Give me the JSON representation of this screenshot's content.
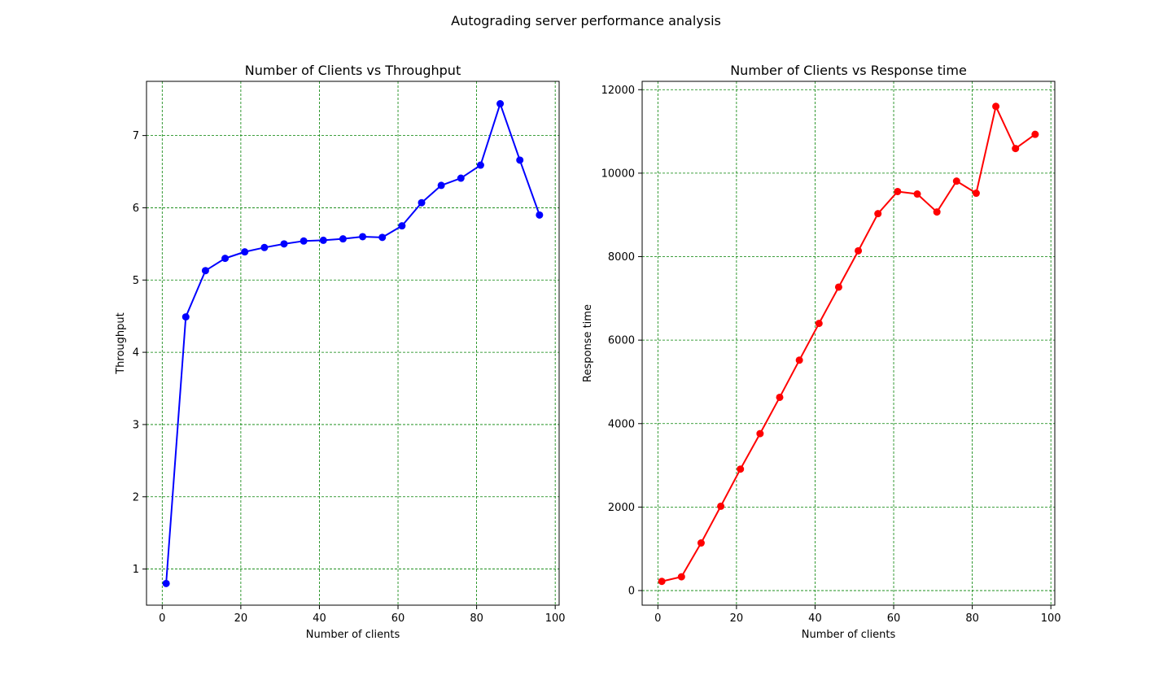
{
  "figure": {
    "suptitle": "Autograding server performance analysis"
  },
  "chart_data": [
    {
      "type": "line",
      "title": "Number of Clients vs Throughput",
      "xlabel": "Number of clients",
      "ylabel": "Throughput",
      "xlim": [
        -4,
        101
      ],
      "ylim": [
        0.5,
        7.75
      ],
      "xticks": [
        0,
        20,
        40,
        60,
        80,
        100
      ],
      "yticks": [
        1,
        2,
        3,
        4,
        5,
        6,
        7
      ],
      "grid": true,
      "grid_color": "#008000",
      "grid_style": "dashed",
      "series": [
        {
          "color": "#0000ff",
          "marker": "circle",
          "x": [
            1,
            6,
            11,
            16,
            21,
            26,
            31,
            36,
            41,
            46,
            51,
            56,
            61,
            66,
            71,
            76,
            81,
            86,
            91,
            96
          ],
          "y": [
            0.8,
            4.49,
            5.13,
            5.3,
            5.39,
            5.45,
            5.5,
            5.54,
            5.55,
            5.57,
            5.6,
            5.59,
            5.75,
            6.07,
            6.31,
            6.41,
            6.59,
            7.44,
            6.66,
            5.9
          ]
        }
      ]
    },
    {
      "type": "line",
      "title": "Number of Clients vs Response time",
      "xlabel": "Number of clients",
      "ylabel": "Response time",
      "xlim": [
        -4,
        101
      ],
      "ylim": [
        -350,
        12200
      ],
      "xticks": [
        0,
        20,
        40,
        60,
        80,
        100
      ],
      "yticks": [
        0,
        2000,
        4000,
        6000,
        8000,
        10000,
        12000
      ],
      "grid": true,
      "grid_color": "#008000",
      "grid_style": "dashed",
      "series": [
        {
          "color": "#ff0000",
          "marker": "circle",
          "x": [
            1,
            6,
            11,
            16,
            21,
            26,
            31,
            36,
            41,
            46,
            51,
            56,
            61,
            66,
            71,
            76,
            81,
            86,
            91,
            96
          ],
          "y": [
            220,
            330,
            1140,
            2020,
            2910,
            3760,
            4630,
            5520,
            6400,
            7270,
            8140,
            9030,
            9560,
            9500,
            9070,
            9810,
            9520,
            11600,
            10590,
            10930
          ]
        }
      ]
    }
  ]
}
